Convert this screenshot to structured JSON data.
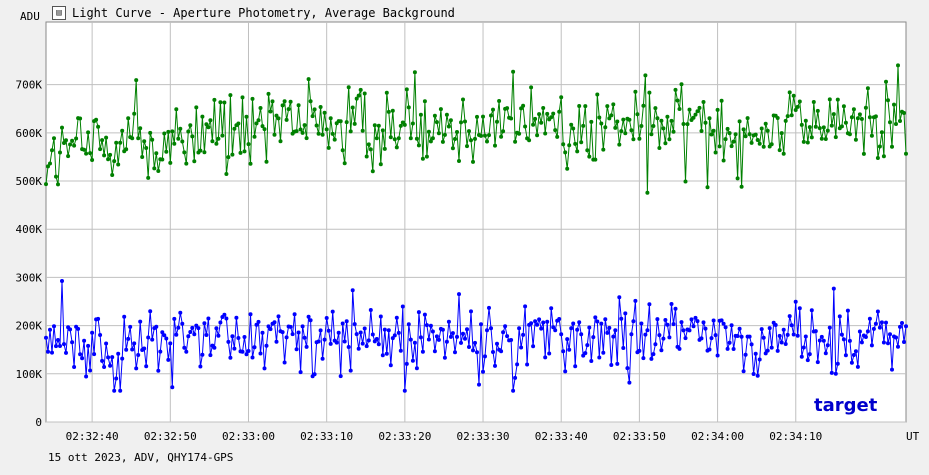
{
  "window": {
    "title": "Light Curve - Aperture Photometry, Average Background",
    "footer": "15 ott 2023, ADV, QHY174-GPS"
  },
  "chart_data": {
    "type": "line",
    "title": "Light Curve - Aperture Photometry, Average Background",
    "ylabel": "ADU",
    "xlabel": "UT",
    "x_tick_labels": [
      "02:32:40",
      "02:32:50",
      "02:33:00",
      "02:33:10",
      "02:33:20",
      "02:33:30",
      "02:33:40",
      "02:33:50",
      "02:34:00",
      "02:34:10"
    ],
    "y_tick_labels": [
      "0",
      "100K",
      "200K",
      "300K",
      "400K",
      "500K",
      "600K",
      "700K"
    ],
    "ylim": [
      0,
      830000
    ],
    "x_range_seconds": [
      0,
      110
    ],
    "grid": true,
    "series": [
      {
        "name": "",
        "color": "#008000",
        "marker": "circle",
        "approx_level_start": 560000,
        "approx_level_end": 620000,
        "approx_min": 405000,
        "approx_max": 740000,
        "samples": [
          545000,
          575000,
          590000,
          560000,
          610000,
          600000,
          625000,
          615000,
          605000,
          630000,
          615000,
          625000,
          620000,
          610000,
          615000,
          620000,
          625000,
          610000,
          615000,
          620000,
          625000,
          615000
        ]
      },
      {
        "name": "target",
        "color": "#0000ff",
        "marker": "circle",
        "approx_level": 170000,
        "approx_min": 65000,
        "approx_max": 302000,
        "samples": [
          170000,
          160000,
          165000,
          170000,
          175000,
          168000,
          172000,
          170000,
          175000,
          168000,
          180000,
          172000,
          170000,
          176000,
          178000,
          180000,
          175000,
          172000,
          170000,
          175000,
          172000,
          178000
        ]
      }
    ],
    "annotations": [
      {
        "text": "target",
        "color": "#0000cc"
      }
    ]
  }
}
